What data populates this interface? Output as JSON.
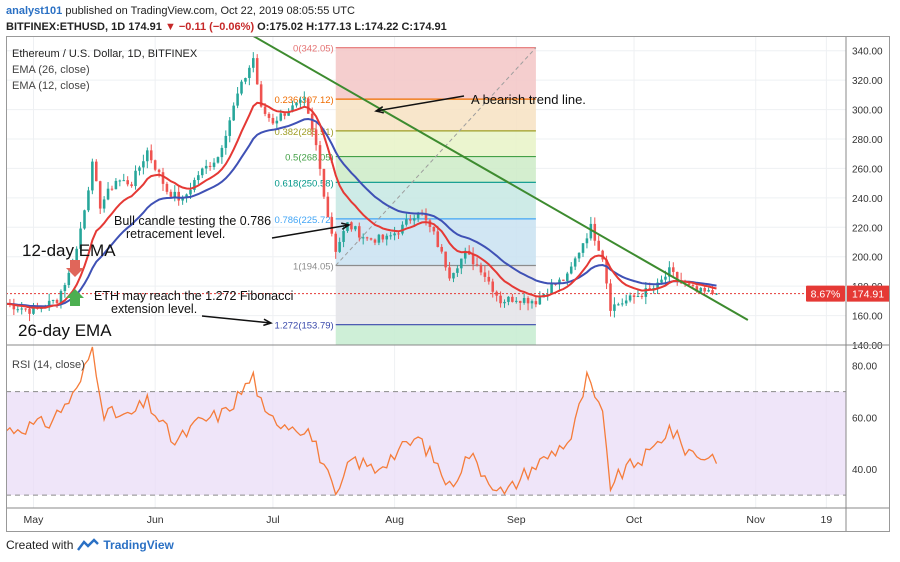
{
  "header": {
    "user": "analyst101",
    "published_text": "published on TradingView.com, Oct 22, 2019 08:05:55 UTC",
    "symbol_line_prefix": "BITFINEX:ETHUSD, 1D 174.91",
    "change_text": "▼ −0.11 (−0.06%)",
    "ohlc_text": "O:175.02 H:177.13 L:174.22 C:174.91"
  },
  "footer": {
    "created_with": "Created with",
    "brand": "TradingView"
  },
  "legend": {
    "title": "Ethereum / U.S. Dollar, 1D, BITFINEX",
    "ema26": "EMA (26, close)",
    "ema12": "EMA (12, close)",
    "rsi": "RSI (14, close)"
  },
  "annotations": {
    "trend": "A bearish trend line.",
    "bull1": "Bull candle testing the 0.786",
    "bull2": "retracement level.",
    "ema12": "12-day EMA",
    "ema26": "26-day EMA",
    "eth1": "ETH may reach the 1.272 Fibonacci",
    "eth2": "extension level."
  },
  "colors": {
    "up": "#26a69a",
    "down": "#ef5350",
    "ema12": "#e53935",
    "ema26": "#3f51b5",
    "trend": "#3d8b2f",
    "rsi": "#f57c3a",
    "price_tag": "#e53935"
  },
  "chart_data": [
    {
      "type": "candlestick",
      "title": "Ethereum / U.S. Dollar, 1D, BITFINEX",
      "x_range": [
        "2019-04-24",
        "2019-11-24"
      ],
      "ylim": [
        140,
        350
      ],
      "y_ticks": [
        140,
        160,
        180,
        200,
        220,
        240,
        260,
        280,
        300,
        320,
        340
      ],
      "y_tick_labels": [
        "140.00",
        "160.00",
        "180.00",
        "200.00",
        "220.00",
        "240.00",
        "260.00",
        "280.00",
        "300.00",
        "320.00",
        "340.00"
      ],
      "x_ticks": [
        {
          "date": "2019-05-01",
          "label": "May"
        },
        {
          "date": "2019-06-01",
          "label": "Jun"
        },
        {
          "date": "2019-07-01",
          "label": "Jul"
        },
        {
          "date": "2019-08-01",
          "label": "Aug"
        },
        {
          "date": "2019-09-01",
          "label": "Sep"
        },
        {
          "date": "2019-10-01",
          "label": "Oct"
        },
        {
          "date": "2019-11-01",
          "label": "Nov"
        },
        {
          "date": "2019-11-19",
          "label": "19"
        }
      ],
      "last_price": {
        "value": 174.91,
        "label": "174.91",
        "pct_label": "8.67%"
      },
      "close_anchors": [
        {
          "date": "2019-04-24",
          "value": 168
        },
        {
          "date": "2019-05-01",
          "value": 163
        },
        {
          "date": "2019-05-07",
          "value": 171
        },
        {
          "date": "2019-05-10",
          "value": 188
        },
        {
          "date": "2019-05-12",
          "value": 205
        },
        {
          "date": "2019-05-16",
          "value": 262
        },
        {
          "date": "2019-05-18",
          "value": 235
        },
        {
          "date": "2019-05-22",
          "value": 252
        },
        {
          "date": "2019-05-26",
          "value": 250
        },
        {
          "date": "2019-05-30",
          "value": 272
        },
        {
          "date": "2019-06-04",
          "value": 245
        },
        {
          "date": "2019-06-08",
          "value": 238
        },
        {
          "date": "2019-06-12",
          "value": 256
        },
        {
          "date": "2019-06-17",
          "value": 268
        },
        {
          "date": "2019-06-22",
          "value": 310
        },
        {
          "date": "2019-06-26",
          "value": 335
        },
        {
          "date": "2019-06-28",
          "value": 300
        },
        {
          "date": "2019-07-01",
          "value": 292
        },
        {
          "date": "2019-07-05",
          "value": 300
        },
        {
          "date": "2019-07-09",
          "value": 305
        },
        {
          "date": "2019-07-12",
          "value": 275
        },
        {
          "date": "2019-07-15",
          "value": 228
        },
        {
          "date": "2019-07-17",
          "value": 205
        },
        {
          "date": "2019-07-20",
          "value": 222
        },
        {
          "date": "2019-07-25",
          "value": 212
        },
        {
          "date": "2019-07-30",
          "value": 212
        },
        {
          "date": "2019-08-03",
          "value": 220
        },
        {
          "date": "2019-08-07",
          "value": 232
        },
        {
          "date": "2019-08-11",
          "value": 215
        },
        {
          "date": "2019-08-15",
          "value": 188
        },
        {
          "date": "2019-08-19",
          "value": 202
        },
        {
          "date": "2019-08-23",
          "value": 192
        },
        {
          "date": "2019-08-28",
          "value": 170
        },
        {
          "date": "2019-09-01",
          "value": 172
        },
        {
          "date": "2019-09-06",
          "value": 170
        },
        {
          "date": "2019-09-10",
          "value": 180
        },
        {
          "date": "2019-09-14",
          "value": 186
        },
        {
          "date": "2019-09-18",
          "value": 210
        },
        {
          "date": "2019-09-20",
          "value": 220
        },
        {
          "date": "2019-09-23",
          "value": 200
        },
        {
          "date": "2019-09-25",
          "value": 166
        },
        {
          "date": "2019-09-29",
          "value": 170
        },
        {
          "date": "2019-10-03",
          "value": 175
        },
        {
          "date": "2019-10-07",
          "value": 180
        },
        {
          "date": "2019-10-10",
          "value": 190
        },
        {
          "date": "2019-10-13",
          "value": 182
        },
        {
          "date": "2019-10-17",
          "value": 176
        },
        {
          "date": "2019-10-22",
          "value": 174.91
        }
      ],
      "series": [
        {
          "name": "EMA (12, close)",
          "role": "ema12"
        },
        {
          "name": "EMA (26, close)",
          "role": "ema26"
        }
      ],
      "fibonacci": {
        "start_date": "2019-07-17",
        "end_date": "2019-09-06",
        "levels": [
          {
            "ratio": 0,
            "price": 342.05,
            "label": "0(342.05)",
            "band": "#f3c6c6"
          },
          {
            "ratio": 0.236,
            "price": 307.12,
            "label": "0.236(307.12)",
            "band": "#f7e2c2"
          },
          {
            "ratio": 0.382,
            "price": 285.51,
            "label": "0.382(285.51)",
            "band": "#e8f3c7"
          },
          {
            "ratio": 0.5,
            "price": 268.05,
            "label": "0.5(268.05)",
            "band": "#cdebc7"
          },
          {
            "ratio": 0.618,
            "price": 250.58,
            "label": "0.618(250.58)",
            "band": "#c6e8e3"
          },
          {
            "ratio": 0.786,
            "price": 225.72,
            "label": "0.786(225.72)",
            "band": "#c9e2f1"
          },
          {
            "ratio": 1,
            "price": 194.05,
            "label": "1(194.05)",
            "band": "#e3e3e8"
          },
          {
            "ratio": 1.272,
            "price": 153.79,
            "label": "1.272(153.79)",
            "band": "#cfd2f4"
          }
        ],
        "line_colors": [
          "#e57373",
          "#ef6c00",
          "#9e9d24",
          "#43a047",
          "#009688",
          "#42a5f5",
          "#8c8c8c",
          "#3949ab"
        ],
        "lowest_band": "#c6ecd0"
      },
      "trend_line": {
        "start": {
          "date": "2019-06-26",
          "value": 350
        },
        "end": {
          "date": "2019-10-30",
          "value": 157
        }
      }
    },
    {
      "type": "line",
      "title": "RSI (14, close)",
      "ylim": [
        25,
        88
      ],
      "y_ticks": [
        40,
        60,
        80
      ],
      "y_tick_labels": [
        "40.00",
        "60.00",
        "80.00"
      ],
      "band": [
        30,
        70
      ],
      "anchors": [
        {
          "date": "2019-04-24",
          "value": 55
        },
        {
          "date": "2019-05-05",
          "value": 58
        },
        {
          "date": "2019-05-12",
          "value": 70
        },
        {
          "date": "2019-05-16",
          "value": 87
        },
        {
          "date": "2019-05-19",
          "value": 62
        },
        {
          "date": "2019-05-25",
          "value": 60
        },
        {
          "date": "2019-05-30",
          "value": 66
        },
        {
          "date": "2019-06-06",
          "value": 50
        },
        {
          "date": "2019-06-12",
          "value": 58
        },
        {
          "date": "2019-06-19",
          "value": 62
        },
        {
          "date": "2019-06-26",
          "value": 76
        },
        {
          "date": "2019-06-29",
          "value": 60
        },
        {
          "date": "2019-07-04",
          "value": 58
        },
        {
          "date": "2019-07-10",
          "value": 55
        },
        {
          "date": "2019-07-14",
          "value": 42
        },
        {
          "date": "2019-07-17",
          "value": 28
        },
        {
          "date": "2019-07-21",
          "value": 44
        },
        {
          "date": "2019-07-27",
          "value": 40
        },
        {
          "date": "2019-08-02",
          "value": 47
        },
        {
          "date": "2019-08-07",
          "value": 52
        },
        {
          "date": "2019-08-11",
          "value": 44
        },
        {
          "date": "2019-08-15",
          "value": 33
        },
        {
          "date": "2019-08-20",
          "value": 46
        },
        {
          "date": "2019-08-24",
          "value": 38
        },
        {
          "date": "2019-08-29",
          "value": 30
        },
        {
          "date": "2019-09-03",
          "value": 38
        },
        {
          "date": "2019-09-09",
          "value": 45
        },
        {
          "date": "2019-09-15",
          "value": 52
        },
        {
          "date": "2019-09-19",
          "value": 75
        },
        {
          "date": "2019-09-23",
          "value": 60
        },
        {
          "date": "2019-09-25",
          "value": 34
        },
        {
          "date": "2019-09-29",
          "value": 40
        },
        {
          "date": "2019-10-05",
          "value": 46
        },
        {
          "date": "2019-10-10",
          "value": 56
        },
        {
          "date": "2019-10-14",
          "value": 48
        },
        {
          "date": "2019-10-18",
          "value": 45
        },
        {
          "date": "2019-10-22",
          "value": 45
        }
      ]
    }
  ]
}
